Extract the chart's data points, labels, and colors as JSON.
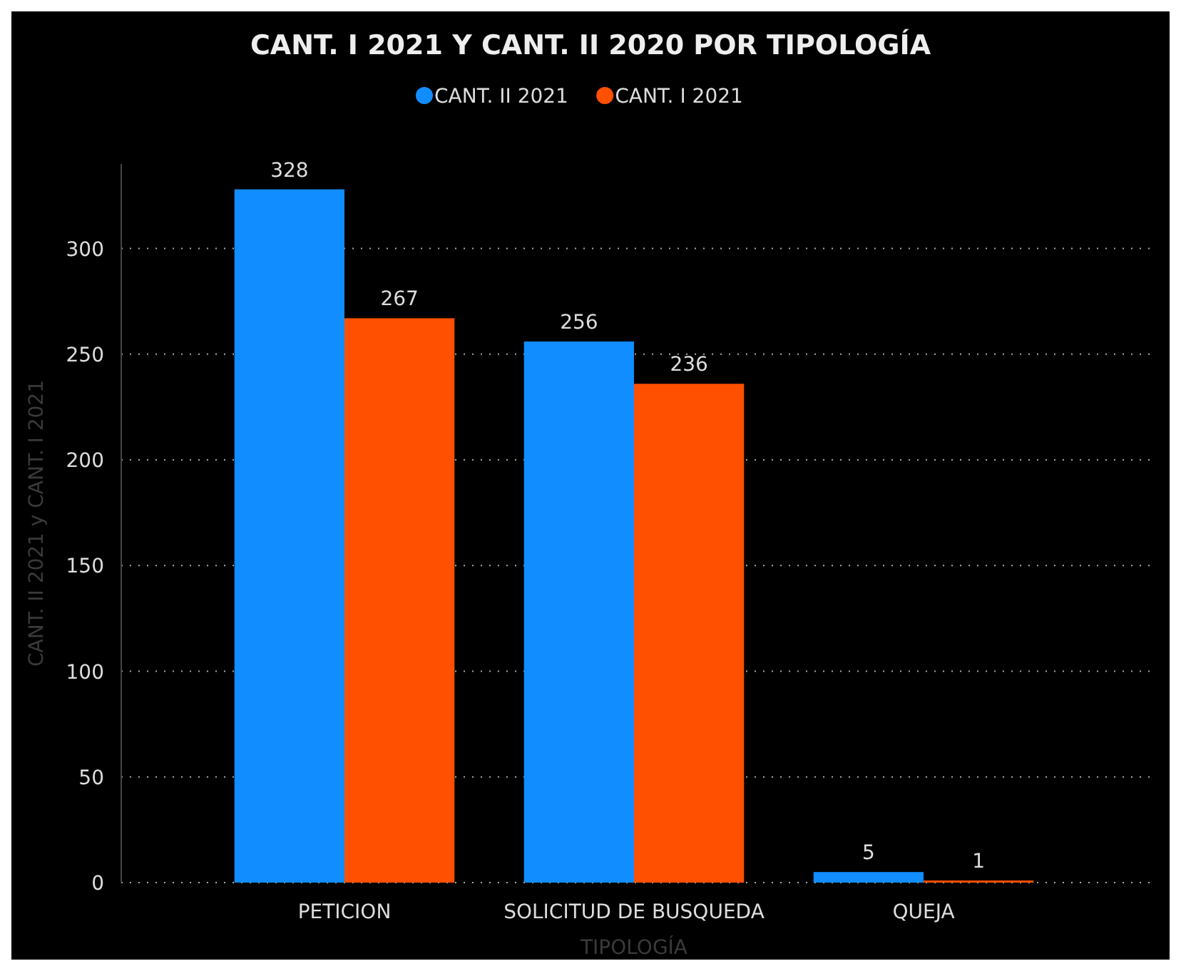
{
  "chart_data": {
    "type": "bar",
    "title": "CANT. I 2021 Y CANT. II 2020 POR TIPOLOGÍA",
    "xlabel": "TIPOLOGÍA",
    "ylabel": "CANT. II 2021 y CANT. I 2021",
    "categories": [
      "PETICION",
      "SOLICITUD DE BUSQUEDA",
      "QUEJA"
    ],
    "series": [
      {
        "name": "CANT. II 2021",
        "color": "#118dff",
        "values": [
          328,
          256,
          5
        ]
      },
      {
        "name": "CANT. I 2021",
        "color": "#ff4f00",
        "values": [
          267,
          236,
          1
        ]
      }
    ],
    "ylim": [
      0,
      340
    ],
    "yticks": [
      0,
      50,
      100,
      150,
      200,
      250,
      300
    ],
    "grid": "y",
    "legend": "top",
    "data_labels": true
  }
}
